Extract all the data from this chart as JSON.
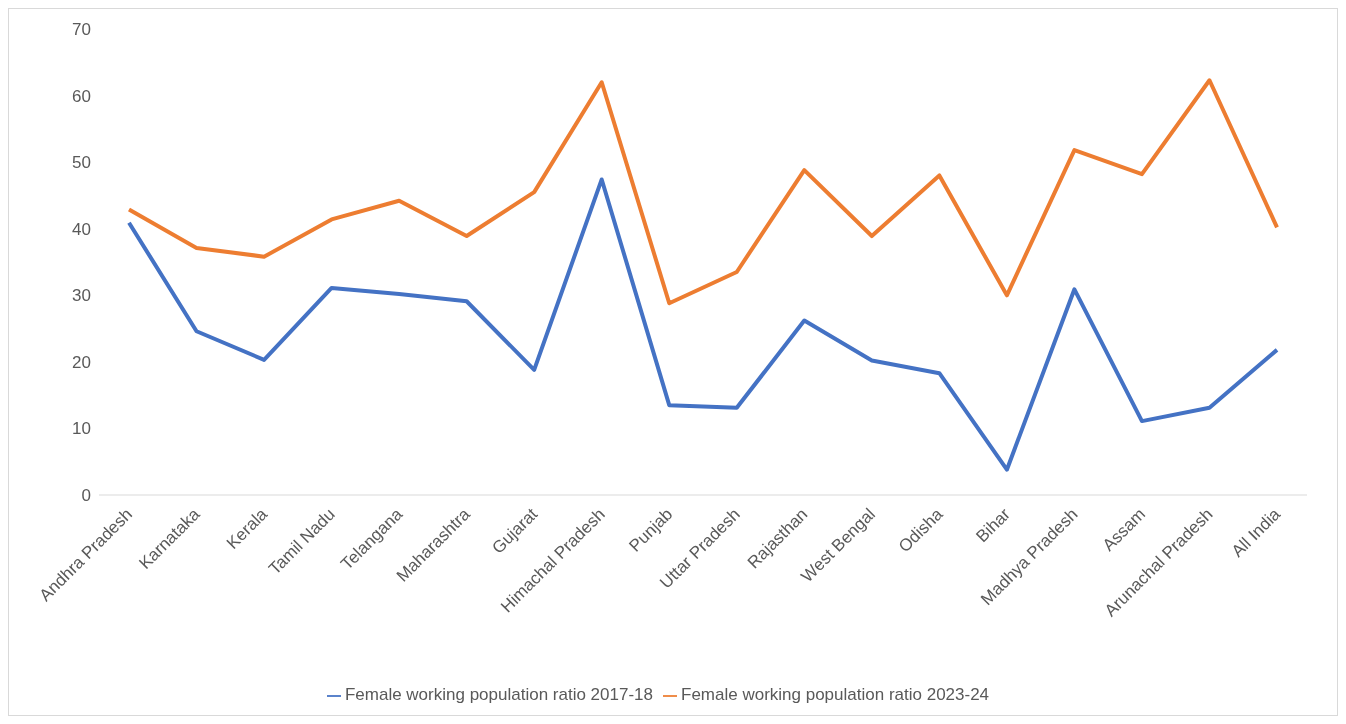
{
  "chart_data": {
    "type": "line",
    "categories": [
      "Andhra Pradesh",
      "Karnataka",
      "Kerala",
      "Tamil Nadu",
      "Telangana",
      "Maharashtra",
      "Gujarat",
      "Himachal Pradesh",
      "Punjab",
      "Uttar Pradesh",
      "Rajasthan",
      "West Bengal",
      "Odisha",
      "Bihar",
      "Madhya Pradesh",
      "Assam",
      "Arunachal Pradesh",
      "All India"
    ],
    "series": [
      {
        "name": "Female working population ratio 2017-18",
        "color": "#4472c4",
        "values": [
          40.9,
          24.6,
          20.3,
          31.1,
          30.2,
          29.1,
          18.8,
          47.4,
          13.5,
          13.1,
          26.2,
          20.2,
          18.3,
          3.8,
          30.9,
          11.1,
          13.1,
          21.8
        ]
      },
      {
        "name": "Female working population ratio 2023-24",
        "color": "#ed7d31",
        "values": [
          42.9,
          37.1,
          35.8,
          41.4,
          44.2,
          38.9,
          45.5,
          62.0,
          28.8,
          33.5,
          48.8,
          38.9,
          48.0,
          30.0,
          51.8,
          48.2,
          62.3,
          40.2
        ]
      }
    ],
    "ylim": [
      0,
      70
    ],
    "yticks": [
      0,
      10,
      20,
      30,
      40,
      50,
      60,
      70
    ],
    "grid": false,
    "legend": "bottom",
    "marker": "none",
    "line_style": "solid"
  }
}
